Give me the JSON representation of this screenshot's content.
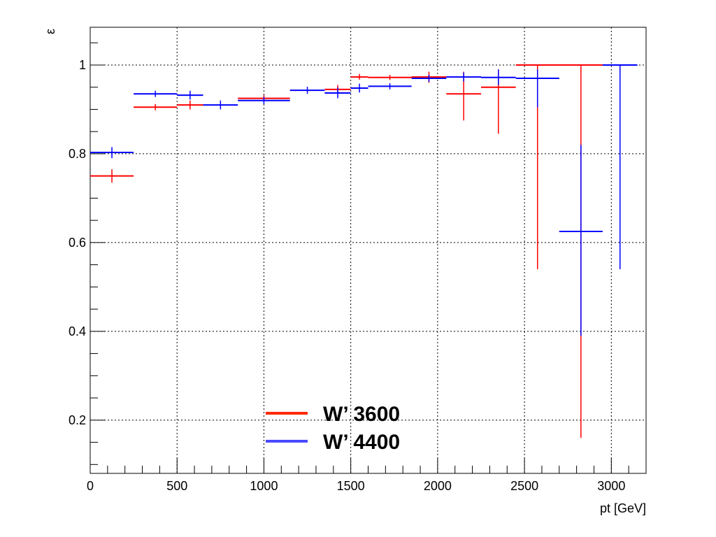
{
  "chart_data": {
    "type": "scatter",
    "title": "",
    "xlabel": "pt [GeV]",
    "ylabel": "ε",
    "xlim": [
      0,
      3200
    ],
    "ylim": [
      0.08,
      1.085
    ],
    "x_ticks": [
      0,
      500,
      1000,
      1500,
      2000,
      2500,
      3000
    ],
    "x_tick_labels": [
      "0",
      "500",
      "1000",
      "1500",
      "2000",
      "2500",
      "3000"
    ],
    "y_ticks": [
      0.2,
      0.4,
      0.6,
      0.8,
      1.0
    ],
    "y_tick_labels": [
      "0.2",
      "0.4",
      "0.6",
      "0.8",
      "1"
    ],
    "grid": true,
    "legend_position": "bottom-center",
    "series": [
      {
        "name": "W’ 3600",
        "color": "#ff0000",
        "points": [
          {
            "x": 125,
            "xlo": 0,
            "xhi": 250,
            "y": 0.75,
            "ylo": 0.735,
            "yhi": 0.765
          },
          {
            "x": 375,
            "xlo": 250,
            "xhi": 500,
            "y": 0.905,
            "ylo": 0.898,
            "yhi": 0.912
          },
          {
            "x": 575,
            "xlo": 500,
            "xhi": 650,
            "y": 0.91,
            "ylo": 0.9,
            "yhi": 0.92
          },
          {
            "x": 1000,
            "xlo": 850,
            "xhi": 1150,
            "y": 0.925,
            "ylo": 0.918,
            "yhi": 0.932
          },
          {
            "x": 1425,
            "xlo": 1350,
            "xhi": 1500,
            "y": 0.945,
            "ylo": 0.935,
            "yhi": 0.955
          },
          {
            "x": 1550,
            "xlo": 1500,
            "xhi": 1600,
            "y": 0.973,
            "ylo": 0.967,
            "yhi": 0.98
          },
          {
            "x": 1725,
            "xlo": 1600,
            "xhi": 1850,
            "y": 0.972,
            "ylo": 0.966,
            "yhi": 0.978
          },
          {
            "x": 1950,
            "xlo": 1850,
            "xhi": 2050,
            "y": 0.973,
            "ylo": 0.96,
            "yhi": 0.985
          },
          {
            "x": 2150,
            "xlo": 2050,
            "xhi": 2250,
            "y": 0.935,
            "ylo": 0.875,
            "yhi": 0.985
          },
          {
            "x": 2350,
            "xlo": 2250,
            "xhi": 2450,
            "y": 0.95,
            "ylo": 0.845,
            "yhi": 0.99
          },
          {
            "x": 2575,
            "xlo": 2450,
            "xhi": 2700,
            "y": 1.0,
            "ylo": 0.54,
            "yhi": 1.0
          },
          {
            "x": 2825,
            "xlo": 2700,
            "xhi": 2950,
            "y": 1.0,
            "ylo": 0.16,
            "yhi": 1.0
          }
        ]
      },
      {
        "name": "W’ 4400",
        "color": "#0000ff",
        "points": [
          {
            "x": 125,
            "xlo": 0,
            "xhi": 250,
            "y": 0.803,
            "ylo": 0.79,
            "yhi": 0.815
          },
          {
            "x": 375,
            "xlo": 250,
            "xhi": 500,
            "y": 0.935,
            "ylo": 0.928,
            "yhi": 0.942
          },
          {
            "x": 575,
            "xlo": 500,
            "xhi": 650,
            "y": 0.932,
            "ylo": 0.922,
            "yhi": 0.942
          },
          {
            "x": 750,
            "xlo": 650,
            "xhi": 850,
            "y": 0.91,
            "ylo": 0.9,
            "yhi": 0.92
          },
          {
            "x": 1000,
            "xlo": 850,
            "xhi": 1150,
            "y": 0.92,
            "ylo": 0.912,
            "yhi": 0.928
          },
          {
            "x": 1250,
            "xlo": 1150,
            "xhi": 1350,
            "y": 0.943,
            "ylo": 0.935,
            "yhi": 0.951
          },
          {
            "x": 1425,
            "xlo": 1350,
            "xhi": 1500,
            "y": 0.937,
            "ylo": 0.925,
            "yhi": 0.949
          },
          {
            "x": 1550,
            "xlo": 1500,
            "xhi": 1600,
            "y": 0.948,
            "ylo": 0.938,
            "yhi": 0.958
          },
          {
            "x": 1725,
            "xlo": 1600,
            "xhi": 1850,
            "y": 0.952,
            "ylo": 0.945,
            "yhi": 0.959
          },
          {
            "x": 1950,
            "xlo": 1850,
            "xhi": 2050,
            "y": 0.97,
            "ylo": 0.962,
            "yhi": 0.978
          },
          {
            "x": 2150,
            "xlo": 2050,
            "xhi": 2250,
            "y": 0.973,
            "ylo": 0.963,
            "yhi": 0.983
          },
          {
            "x": 2350,
            "xlo": 2250,
            "xhi": 2450,
            "y": 0.972,
            "ylo": 0.955,
            "yhi": 0.99
          },
          {
            "x": 2575,
            "xlo": 2450,
            "xhi": 2700,
            "y": 0.97,
            "ylo": 0.905,
            "yhi": 0.99
          },
          {
            "x": 2825,
            "xlo": 2700,
            "xhi": 2950,
            "y": 0.625,
            "ylo": 0.39,
            "yhi": 0.82
          },
          {
            "x": 3050,
            "xlo": 2950,
            "xhi": 3150,
            "y": 1.0,
            "ylo": 0.54,
            "yhi": 1.0
          }
        ]
      }
    ]
  }
}
